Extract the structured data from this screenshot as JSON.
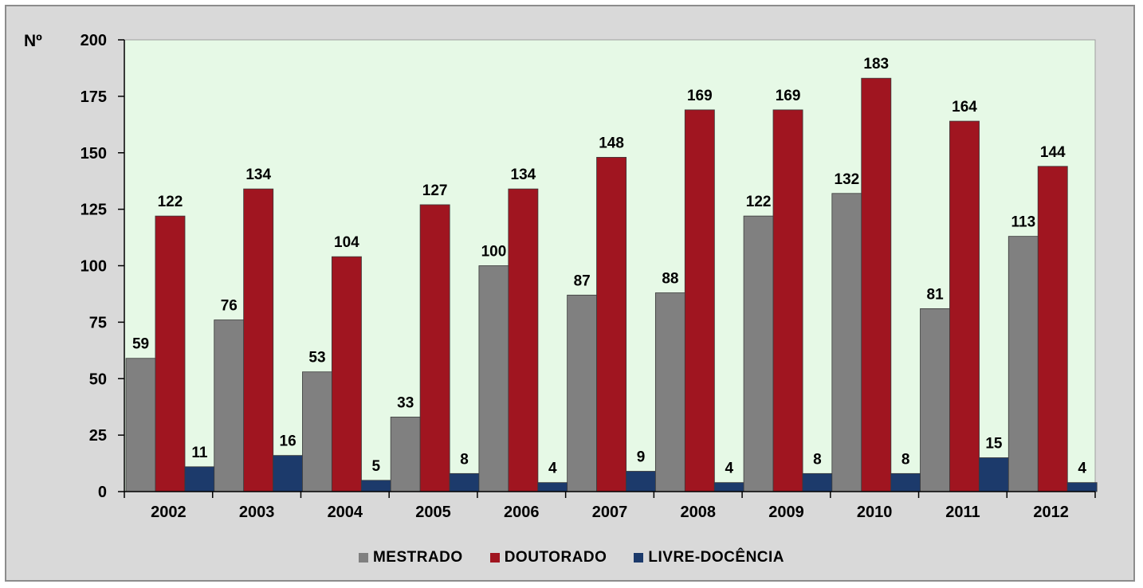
{
  "chart_data": {
    "type": "bar",
    "unit_label": "Nº",
    "categories": [
      "2002",
      "2003",
      "2004",
      "2005",
      "2006",
      "2007",
      "2008",
      "2009",
      "2010",
      "2011",
      "2012"
    ],
    "series": [
      {
        "name": "MESTRADO",
        "color": "#808080",
        "values": [
          59,
          76,
          53,
          33,
          100,
          87,
          88,
          122,
          132,
          81,
          113
        ]
      },
      {
        "name": "DOUTORADO",
        "color": "#a01520",
        "values": [
          122,
          134,
          104,
          127,
          134,
          148,
          169,
          169,
          183,
          164,
          144
        ]
      },
      {
        "name": "LIVRE-DOCÊNCIA",
        "color": "#1c3a6b",
        "values": [
          11,
          16,
          5,
          8,
          4,
          9,
          4,
          8,
          8,
          15,
          4
        ]
      }
    ],
    "ylim": [
      0,
      200
    ],
    "yticks": [
      0,
      25,
      50,
      75,
      100,
      125,
      150,
      175,
      200
    ],
    "plot_background": "#e6f9e6",
    "grid": false,
    "legend_position": "bottom"
  }
}
